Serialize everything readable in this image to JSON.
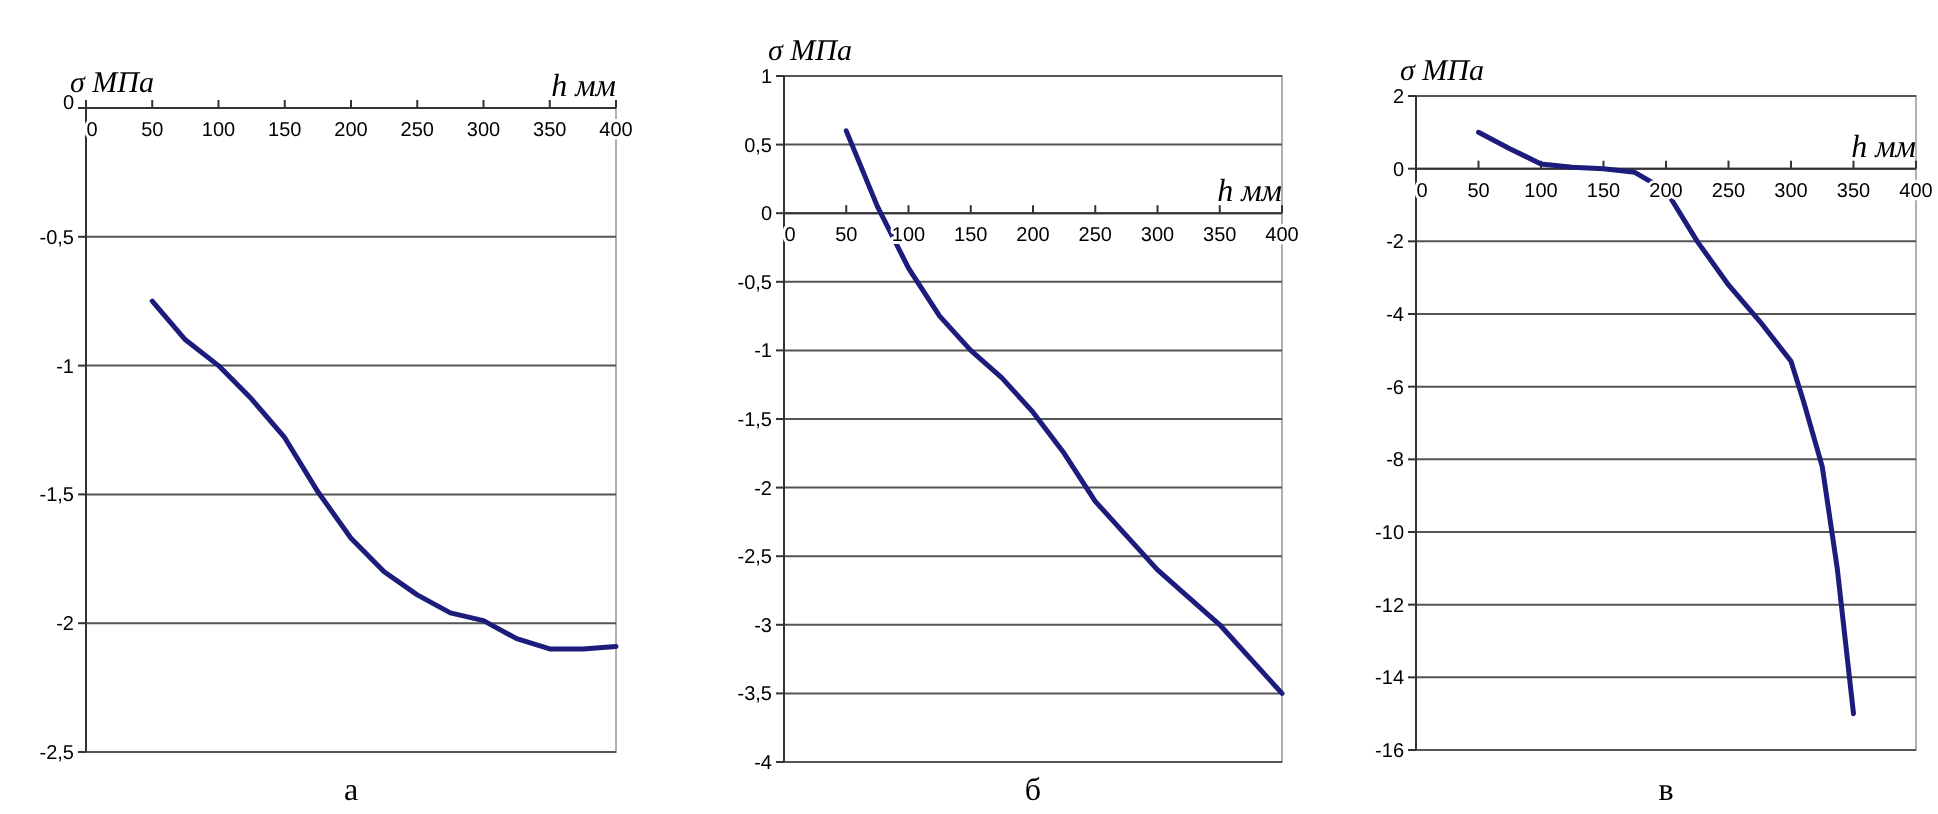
{
  "chart_data": [
    {
      "type": "line",
      "xlabel": "h мм",
      "ylabel": "σ МПа",
      "annotations": [
        "а"
      ],
      "xlim": [
        0,
        400
      ],
      "xticks": [
        0,
        50,
        100,
        150,
        200,
        250,
        300,
        350,
        400
      ],
      "ylim": [
        -2.5,
        0
      ],
      "yticks": [
        {
          "value": -2.5,
          "label": "-2,5"
        },
        -2,
        {
          "value": -1.5,
          "label": "-1,5"
        },
        -1,
        {
          "value": -0.5,
          "label": "-0,5"
        },
        0
      ],
      "grid": "y",
      "line_style": "solid",
      "x": [
        50,
        75,
        100,
        125,
        150,
        175,
        200,
        225,
        250,
        275,
        300,
        325,
        350,
        375,
        400
      ],
      "series": [
        {
          "color": "#1c1c7c",
          "values": [
            -0.75,
            -0.9,
            -1.0,
            -1.13,
            -1.28,
            -1.49,
            -1.67,
            -1.8,
            -1.89,
            -1.96,
            -1.99,
            -2.06,
            -2.1,
            -2.1,
            -2.09
          ]
        }
      ]
    },
    {
      "type": "line",
      "xlabel": "h мм",
      "ylabel": "σ МПа",
      "annotations": [
        "б"
      ],
      "xlim": [
        0,
        400
      ],
      "xticks": [
        0,
        50,
        100,
        150,
        200,
        250,
        300,
        350,
        400
      ],
      "ylim": [
        -4,
        1
      ],
      "yticks": [
        -4,
        {
          "value": -3.5,
          "label": "-3,5"
        },
        -3,
        {
          "value": -2.5,
          "label": "-2,5"
        },
        -2,
        {
          "value": -1.5,
          "label": "-1,5"
        },
        -1,
        {
          "value": -0.5,
          "label": "-0,5"
        },
        0,
        {
          "value": 0.5,
          "label": "0,5"
        },
        1
      ],
      "grid": "y",
      "line_style": "solid",
      "x": [
        50,
        75,
        100,
        125,
        150,
        175,
        200,
        225,
        250,
        275,
        300,
        325,
        350,
        375,
        400
      ],
      "series": [
        {
          "color": "#1c1c7c",
          "values": [
            0.6,
            0.05,
            -0.4,
            -0.75,
            -1.0,
            -1.2,
            -1.45,
            -1.75,
            -2.1,
            -2.35,
            -2.6,
            -2.8,
            -3.0,
            -3.25,
            -3.5
          ]
        }
      ]
    },
    {
      "type": "line",
      "xlabel": "h мм",
      "ylabel": "σ МПа",
      "annotations": [
        "в"
      ],
      "xlim": [
        0,
        400
      ],
      "xticks": [
        0,
        50,
        100,
        150,
        200,
        250,
        300,
        350,
        400
      ],
      "ylim": [
        -16,
        2
      ],
      "yticks": [
        -16,
        -14,
        -12,
        -10,
        -8,
        -6,
        -4,
        -2,
        0,
        2
      ],
      "grid": "y",
      "line_style": "solid",
      "x": [
        50,
        75,
        100,
        125,
        150,
        175,
        200,
        225,
        250,
        275,
        300,
        310,
        325,
        337,
        350
      ],
      "series": [
        {
          "color": "#1c1c7c",
          "values": [
            1.0,
            0.55,
            0.13,
            0.04,
            0.0,
            -0.1,
            -0.6,
            -2.0,
            -3.2,
            -4.2,
            -5.3,
            -6.4,
            -8.2,
            -11,
            -15
          ]
        }
      ]
    }
  ]
}
